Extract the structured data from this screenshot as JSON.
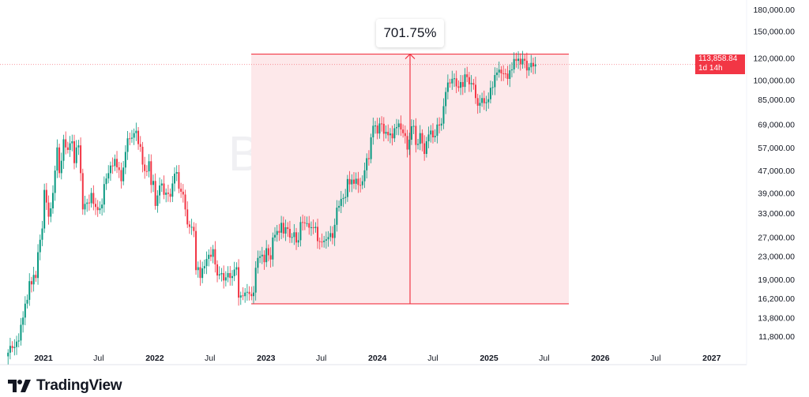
{
  "chart_data": {
    "type": "candlestick",
    "symbol_watermark": "BTCUSD, 1W",
    "y_scale": "log",
    "ylim": [
      10500,
      190000
    ],
    "y_ticks": [
      "180,000.00",
      "150,000.00",
      "120,000.00",
      "100,000.00",
      "85,000.00",
      "69,000.00",
      "57,000.00",
      "47,000.00",
      "39,000.00",
      "33,000.00",
      "27,000.00",
      "23,000.00",
      "19,000.00",
      "16,200.00",
      "13,800.00",
      "11,800.00"
    ],
    "y_tick_values": [
      180000,
      150000,
      120000,
      100000,
      85000,
      69000,
      57000,
      47000,
      39000,
      33000,
      27000,
      23000,
      19000,
      16200,
      13800,
      11800
    ],
    "x_ticks": [
      {
        "label": "2021",
        "date": "2021-01-01",
        "major": true
      },
      {
        "label": "Jul",
        "date": "2021-07-01",
        "major": false
      },
      {
        "label": "2022",
        "date": "2022-01-01",
        "major": true
      },
      {
        "label": "Jul",
        "date": "2022-07-01",
        "major": false
      },
      {
        "label": "2023",
        "date": "2023-01-01",
        "major": true
      },
      {
        "label": "Jul",
        "date": "2023-07-01",
        "major": false
      },
      {
        "label": "2024",
        "date": "2024-01-01",
        "major": true
      },
      {
        "label": "Jul",
        "date": "2024-07-01",
        "major": false
      },
      {
        "label": "2025",
        "date": "2025-01-01",
        "major": true
      },
      {
        "label": "Jul",
        "date": "2025-07-01",
        "major": false
      },
      {
        "label": "2026",
        "date": "2026-01-01",
        "major": true
      },
      {
        "label": "Jul",
        "date": "2026-07-01",
        "major": false
      },
      {
        "label": "2027",
        "date": "2027-01-01",
        "major": true
      }
    ],
    "x_range": [
      "2020-09-07",
      "2027-04-01"
    ],
    "first_week": "2020-09-07",
    "weekly_closes": [
      10300,
      10900,
      10700,
      10800,
      11300,
      11400,
      13000,
      13800,
      15500,
      16000,
      18700,
      18200,
      19700,
      19200,
      23800,
      26400,
      29000,
      40000,
      36000,
      32000,
      34300,
      39000,
      47000,
      57000,
      46000,
      51000,
      61000,
      57000,
      55800,
      59000,
      60000,
      50000,
      57000,
      58000,
      46000,
      34000,
      35600,
      36000,
      35800,
      39000,
      35600,
      34700,
      33800,
      34300,
      35400,
      42000,
      44000,
      46000,
      49000,
      48800,
      51800,
      48300,
      47200,
      43000,
      48200,
      54900,
      61500,
      61300,
      61800,
      64200,
      65500,
      58600,
      57300,
      49400,
      46800,
      46700,
      50800,
      41700,
      43100,
      35000,
      38200,
      41500,
      42200,
      38400,
      39100,
      38700,
      37800,
      42200,
      45800,
      46400,
      40400,
      39400,
      38500,
      34000,
      30000,
      29400,
      29400,
      28400,
      20500,
      21000,
      19200,
      20800,
      21200,
      22500,
      23300,
      22900,
      24400,
      21500,
      19600,
      19800,
      20000,
      18800,
      19300,
      20000,
      19200,
      19500,
      20600,
      21000,
      16300,
      16600,
      16500,
      17000,
      17100,
      16800,
      16500,
      17000,
      20900,
      22700,
      23000,
      23300,
      21900,
      24600,
      23200,
      22400,
      26900,
      27500,
      28400,
      28000,
      30400,
      27800,
      29300,
      28900,
      26900,
      27000,
      28100,
      25800,
      26300,
      30600,
      30500,
      30300,
      30300,
      29200,
      29300,
      29100,
      29400,
      26100,
      26000,
      25900,
      26200,
      26500,
      27000,
      27900,
      26800,
      29900,
      34500,
      35000,
      37100,
      37400,
      37700,
      43800,
      41900,
      43600,
      42100,
      43900,
      41700,
      41600,
      43000,
      47100,
      52100,
      51700,
      62000,
      68300,
      68400,
      64000,
      69600,
      69400,
      63900,
      64900,
      63100,
      64000,
      61500,
      66900,
      67500,
      69600,
      66200,
      64200,
      62700,
      56000,
      60800,
      68000,
      68200,
      58200,
      58700,
      64200,
      59000,
      54000,
      60000,
      63500,
      65600,
      62000,
      62800,
      69000,
      68400,
      69500,
      80400,
      90500,
      97900,
      97200,
      101000,
      101400,
      94800,
      93700,
      98300,
      94400,
      104800,
      102400,
      96500,
      97500,
      96100,
      86000,
      80700,
      82600,
      86000,
      82400,
      83100,
      85200,
      93700,
      94200,
      104200,
      106400,
      109000,
      105700,
      105600,
      105500,
      100900,
      108400,
      109200,
      119100,
      117300,
      119400,
      114000,
      119300,
      117400,
      108300,
      111200,
      115300,
      112000,
      113858.84
    ],
    "measurement": {
      "low": 15476,
      "high": 124080,
      "low_date": "2022-11-21",
      "end_date": "2025-09-29",
      "change_label": "701.75%"
    },
    "last_price": {
      "value": "113,858.84",
      "countdown": "1d 14h"
    },
    "colors": {
      "up": "#089981",
      "down": "#f23645",
      "measure_fill": "#fde8ea",
      "measure_line": "#f23645"
    }
  },
  "branding": {
    "logo_text": "TradingView"
  }
}
